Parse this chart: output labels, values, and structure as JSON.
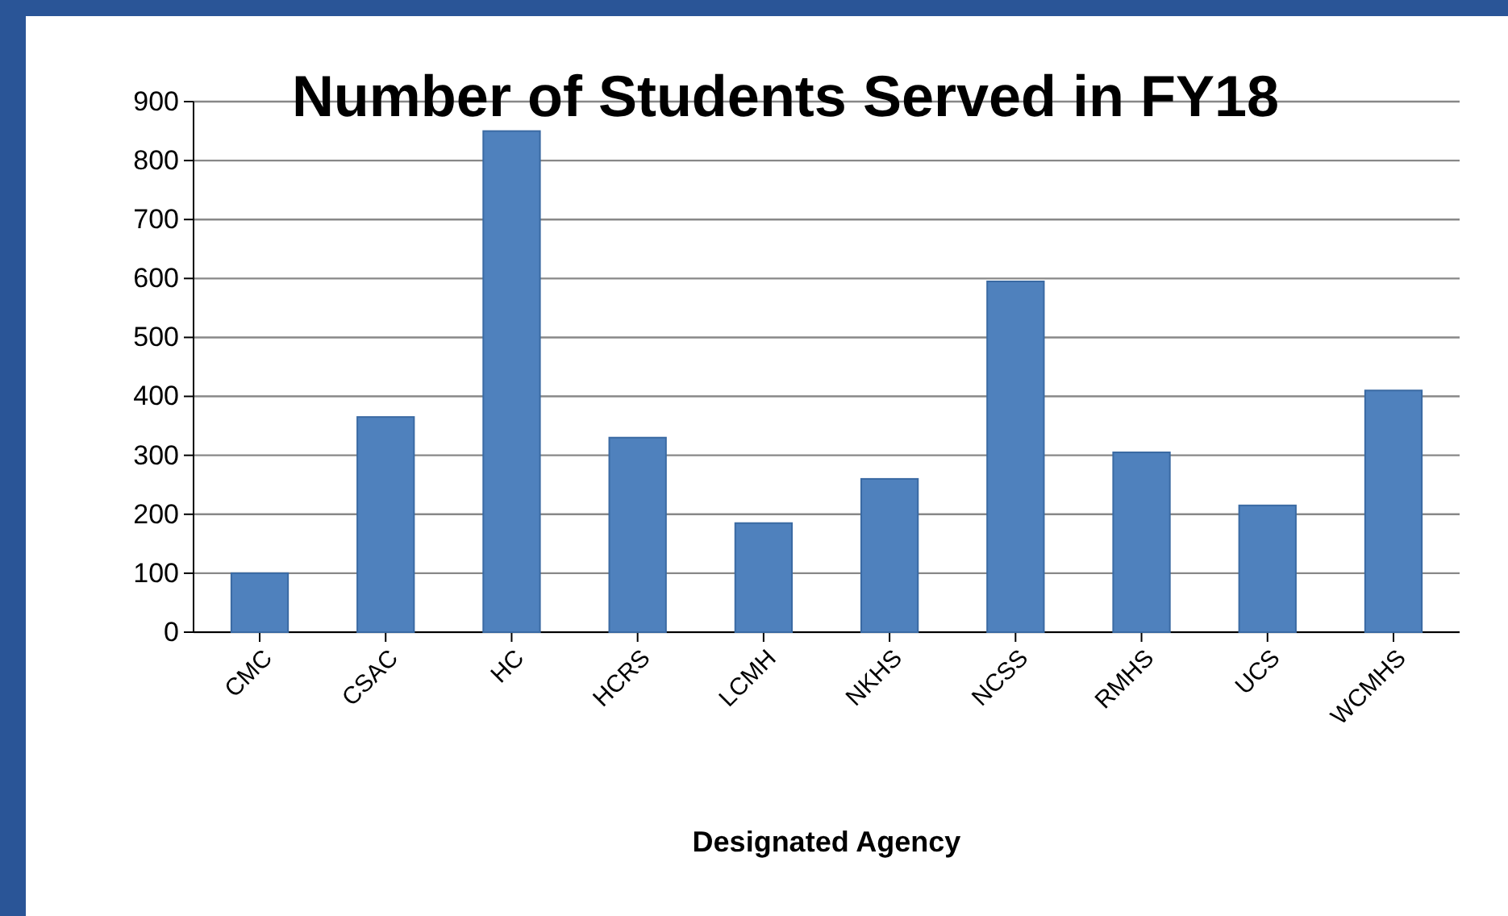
{
  "chart_data": {
    "type": "bar",
    "title": "Number of Students Served in FY18",
    "xlabel": "Designated Agency",
    "categories": [
      "CMC",
      "CSAC",
      "HC",
      "HCRS",
      "LCMH",
      "NKHS",
      "NCSS",
      "RMHS",
      "UCS",
      "WCMHS"
    ],
    "values": [
      100,
      365,
      850,
      330,
      185,
      260,
      595,
      305,
      215,
      410
    ],
    "color": "#4f81bd",
    "ylim": [
      0,
      900
    ],
    "yticks": [
      0,
      100,
      200,
      300,
      400,
      500,
      600,
      700,
      800,
      900
    ],
    "grid": "y"
  }
}
